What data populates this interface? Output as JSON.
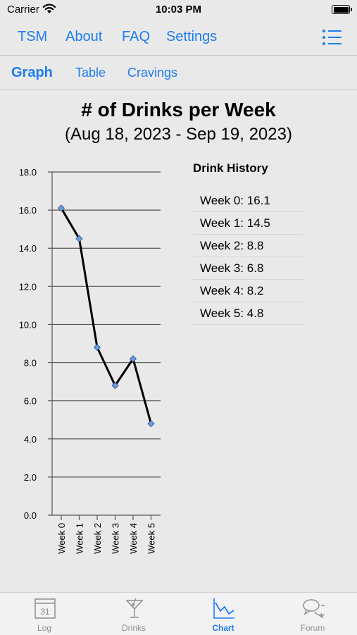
{
  "status_bar": {
    "carrier": "Carrier",
    "time": "10:03 PM"
  },
  "top_nav": {
    "items": [
      {
        "label": "TSM"
      },
      {
        "label": "About"
      },
      {
        "label": "FAQ"
      },
      {
        "label": "Settings"
      }
    ],
    "menu_icon": "list-menu-icon"
  },
  "sub_nav": {
    "tabs": [
      {
        "label": "Graph",
        "active": true
      },
      {
        "label": "Table",
        "active": false
      },
      {
        "label": "Cravings",
        "active": false
      }
    ]
  },
  "chart_data": {
    "type": "line",
    "title": "# of Drinks per Week",
    "subtitle": "(Aug 18, 2023 - Sep 19, 2023)",
    "categories": [
      "Week 0",
      "Week 1",
      "Week 2",
      "Week 3",
      "Week 4",
      "Week 5"
    ],
    "values": [
      16.1,
      14.5,
      8.8,
      6.8,
      8.2,
      4.8
    ],
    "ylim": [
      0,
      18
    ],
    "yticks": [
      "0.0",
      "2.0",
      "4.0",
      "6.0",
      "8.0",
      "10.0",
      "12.0",
      "14.0",
      "16.0",
      "18.0"
    ],
    "grid": true,
    "line_color": "#000000",
    "marker_color": "#6a9be0"
  },
  "history": {
    "title": "Drink History",
    "items": [
      "Week 0: 16.1",
      "Week 1: 14.5",
      "Week 2: 8.8",
      "Week 3: 6.8",
      "Week 4: 8.2",
      "Week 5: 4.8"
    ]
  },
  "tab_bar": {
    "items": [
      {
        "label": "Log",
        "icon": "calendar-icon",
        "icon_text": "31",
        "active": false
      },
      {
        "label": "Drinks",
        "icon": "martini-glass-icon",
        "active": false
      },
      {
        "label": "Chart",
        "icon": "line-chart-icon",
        "active": true
      },
      {
        "label": "Forum",
        "icon": "chat-bubbles-icon",
        "active": false
      }
    ]
  },
  "colors": {
    "accent": "#1e7cf2",
    "inactive": "#8e8e93"
  }
}
